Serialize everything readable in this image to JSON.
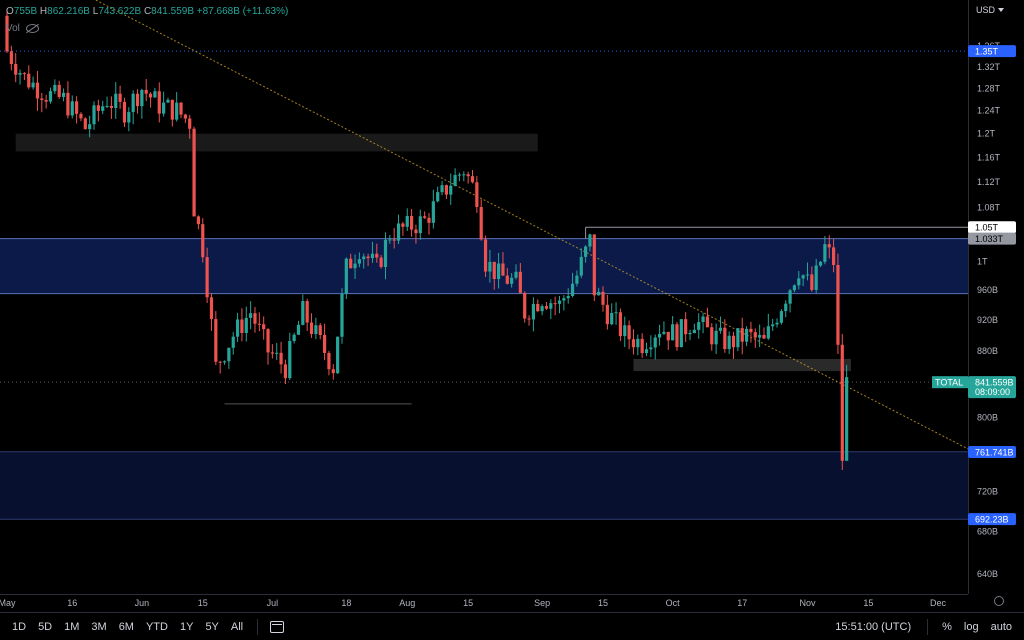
{
  "legend": {
    "open_label": "O",
    "open": "755B",
    "high_label": "H",
    "high": "862.216B",
    "low_label": "L",
    "low": "743.622B",
    "close_label": "C",
    "close": "841.559B",
    "change": "+87.668B (+11.63%)",
    "vol_label": "Vol"
  },
  "currency": "USD",
  "colors": {
    "up": "#26a69a",
    "down": "#ef5350",
    "zone": "#0d1f55",
    "zone_border": "#5b72b8",
    "badge_blue": "#2962ff",
    "badge_teal": "#26a69a"
  },
  "badges": {
    "level_135": "1.35T",
    "level_105": "1.05T",
    "level_1033": "1.033T",
    "total_label": "TOTAL",
    "total_price": "841.559B",
    "countdown": "08:09:00",
    "level_761": "761.741B",
    "level_692": "692.23B"
  },
  "toolbar": {
    "timeframes": [
      "1D",
      "5D",
      "1M",
      "3M",
      "6M",
      "YTD",
      "1Y",
      "5Y",
      "All"
    ],
    "time": "15:51:00 (UTC)",
    "percent": "%",
    "log": "log",
    "auto": "auto"
  },
  "chart_data": {
    "type": "candlestick",
    "y_scale": "log",
    "y_ticks": [
      "1.36T",
      "1.32T",
      "1.28T",
      "1.24T",
      "1.2T",
      "1.16T",
      "1.12T",
      "1.08T",
      "1T",
      "960B",
      "920B",
      "880B",
      "800B",
      "720B",
      "680B",
      "640B"
    ],
    "x_ticks": [
      "May",
      "16",
      "Jun",
      "15",
      "Jul",
      "18",
      "Aug",
      "15",
      "Sep",
      "15",
      "Oct",
      "17",
      "Nov",
      "15",
      "Dec"
    ],
    "ohlc_anchors": [
      {
        "date": "2022-05-01",
        "value": 1.35
      },
      {
        "date": "2022-05-05",
        "value": 1.3
      },
      {
        "date": "2022-05-10",
        "value": 1.27
      },
      {
        "date": "2022-05-14",
        "value": 1.26
      },
      {
        "date": "2022-05-19",
        "value": 1.21
      },
      {
        "date": "2022-05-24",
        "value": 1.26
      },
      {
        "date": "2022-05-28",
        "value": 1.24
      },
      {
        "date": "2022-06-01",
        "value": 1.28
      },
      {
        "date": "2022-06-05",
        "value": 1.25
      },
      {
        "date": "2022-06-09",
        "value": 1.24
      },
      {
        "date": "2022-06-12",
        "value": 1.22
      },
      {
        "date": "2022-06-13",
        "value": 1.08
      },
      {
        "date": "2022-06-15",
        "value": 1.02
      },
      {
        "date": "2022-06-18",
        "value": 0.86
      },
      {
        "date": "2022-06-22",
        "value": 0.9
      },
      {
        "date": "2022-06-26",
        "value": 0.93
      },
      {
        "date": "2022-06-30",
        "value": 0.88
      },
      {
        "date": "2022-07-04",
        "value": 0.86
      },
      {
        "date": "2022-07-08",
        "value": 0.93
      },
      {
        "date": "2022-07-12",
        "value": 0.89
      },
      {
        "date": "2022-07-15",
        "value": 0.86
      },
      {
        "date": "2022-07-18",
        "value": 0.99
      },
      {
        "date": "2022-07-21",
        "value": 1.02
      },
      {
        "date": "2022-07-25",
        "value": 0.99
      },
      {
        "date": "2022-07-28",
        "value": 1.04
      },
      {
        "date": "2022-08-01",
        "value": 1.05
      },
      {
        "date": "2022-08-05",
        "value": 1.06
      },
      {
        "date": "2022-08-08",
        "value": 1.09
      },
      {
        "date": "2022-08-11",
        "value": 1.12
      },
      {
        "date": "2022-08-14",
        "value": 1.14
      },
      {
        "date": "2022-08-17",
        "value": 1.1
      },
      {
        "date": "2022-08-19",
        "value": 1.0
      },
      {
        "date": "2022-08-22",
        "value": 0.98
      },
      {
        "date": "2022-08-26",
        "value": 0.97
      },
      {
        "date": "2022-08-28",
        "value": 0.93
      },
      {
        "date": "2022-09-01",
        "value": 0.95
      },
      {
        "date": "2022-09-05",
        "value": 0.94
      },
      {
        "date": "2022-09-09",
        "value": 0.98
      },
      {
        "date": "2022-09-12",
        "value": 1.03
      },
      {
        "date": "2022-09-13",
        "value": 0.96
      },
      {
        "date": "2022-09-16",
        "value": 0.93
      },
      {
        "date": "2022-09-20",
        "value": 0.9
      },
      {
        "date": "2022-09-24",
        "value": 0.89
      },
      {
        "date": "2022-09-28",
        "value": 0.91
      },
      {
        "date": "2022-10-02",
        "value": 0.9
      },
      {
        "date": "2022-10-06",
        "value": 0.92
      },
      {
        "date": "2022-10-10",
        "value": 0.9
      },
      {
        "date": "2022-10-14",
        "value": 0.89
      },
      {
        "date": "2022-10-18",
        "value": 0.9
      },
      {
        "date": "2022-10-22",
        "value": 0.89
      },
      {
        "date": "2022-10-26",
        "value": 0.94
      },
      {
        "date": "2022-10-30",
        "value": 0.99
      },
      {
        "date": "2022-11-02",
        "value": 0.96
      },
      {
        "date": "2022-11-05",
        "value": 1.02
      },
      {
        "date": "2022-11-07",
        "value": 1.0
      },
      {
        "date": "2022-11-08",
        "value": 0.88
      },
      {
        "date": "2022-11-09",
        "value": 0.755
      },
      {
        "date": "2022-11-10",
        "value": 0.8416
      }
    ],
    "zones": [
      {
        "low": 0.955,
        "high": 1.033
      },
      {
        "low": 0.692,
        "high": 0.762
      },
      {
        "low": 1.17,
        "high": 1.2
      },
      {
        "low": 0.855,
        "high": 0.87
      }
    ],
    "lines": {
      "high_135": 1.35,
      "level_105": 1.05,
      "current": 0.8416,
      "support_816": 0.816
    },
    "trendline": [
      {
        "date": "2022-05-01",
        "value": 1.55
      },
      {
        "date": "2022-12-10",
        "value": 0.76
      }
    ]
  }
}
